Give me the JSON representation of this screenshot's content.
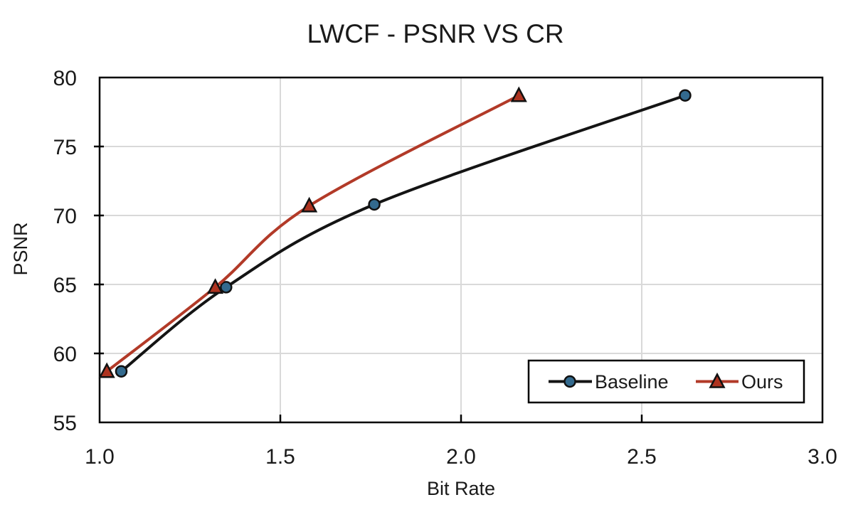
{
  "chart_data": {
    "type": "line",
    "title": "LWCF - PSNR VS CR",
    "xlabel": "Bit Rate",
    "ylabel": "PSNR",
    "xlim": [
      1.0,
      3.0
    ],
    "ylim": [
      55,
      80
    ],
    "x_ticks": [
      1.0,
      1.5,
      2.0,
      2.5,
      3.0
    ],
    "x_tick_labels": [
      "1.0",
      "1.5",
      "2.0",
      "2.5",
      "3.0"
    ],
    "y_ticks": [
      55,
      60,
      65,
      70,
      75,
      80
    ],
    "y_tick_labels": [
      "55",
      "60",
      "65",
      "70",
      "75",
      "80"
    ],
    "grid": true,
    "grid_color": "#d9d9d9",
    "frame_color": "#000000",
    "legend_position": "inside-bottom-right",
    "series": [
      {
        "name": "Baseline",
        "marker": "circle",
        "line_color": "#141414",
        "marker_fill": "#336a8e",
        "marker_stroke": "#111111",
        "points": [
          [
            1.06,
            58.7
          ],
          [
            1.35,
            64.8
          ],
          [
            1.76,
            70.8
          ],
          [
            2.62,
            78.7
          ]
        ]
      },
      {
        "name": "Ours",
        "marker": "triangle",
        "line_color": "#b23a28",
        "marker_fill": "#ae3320",
        "marker_stroke": "#111111",
        "points": [
          [
            1.02,
            58.7
          ],
          [
            1.32,
            64.8
          ],
          [
            1.58,
            70.7
          ],
          [
            2.16,
            78.7
          ]
        ]
      }
    ]
  }
}
